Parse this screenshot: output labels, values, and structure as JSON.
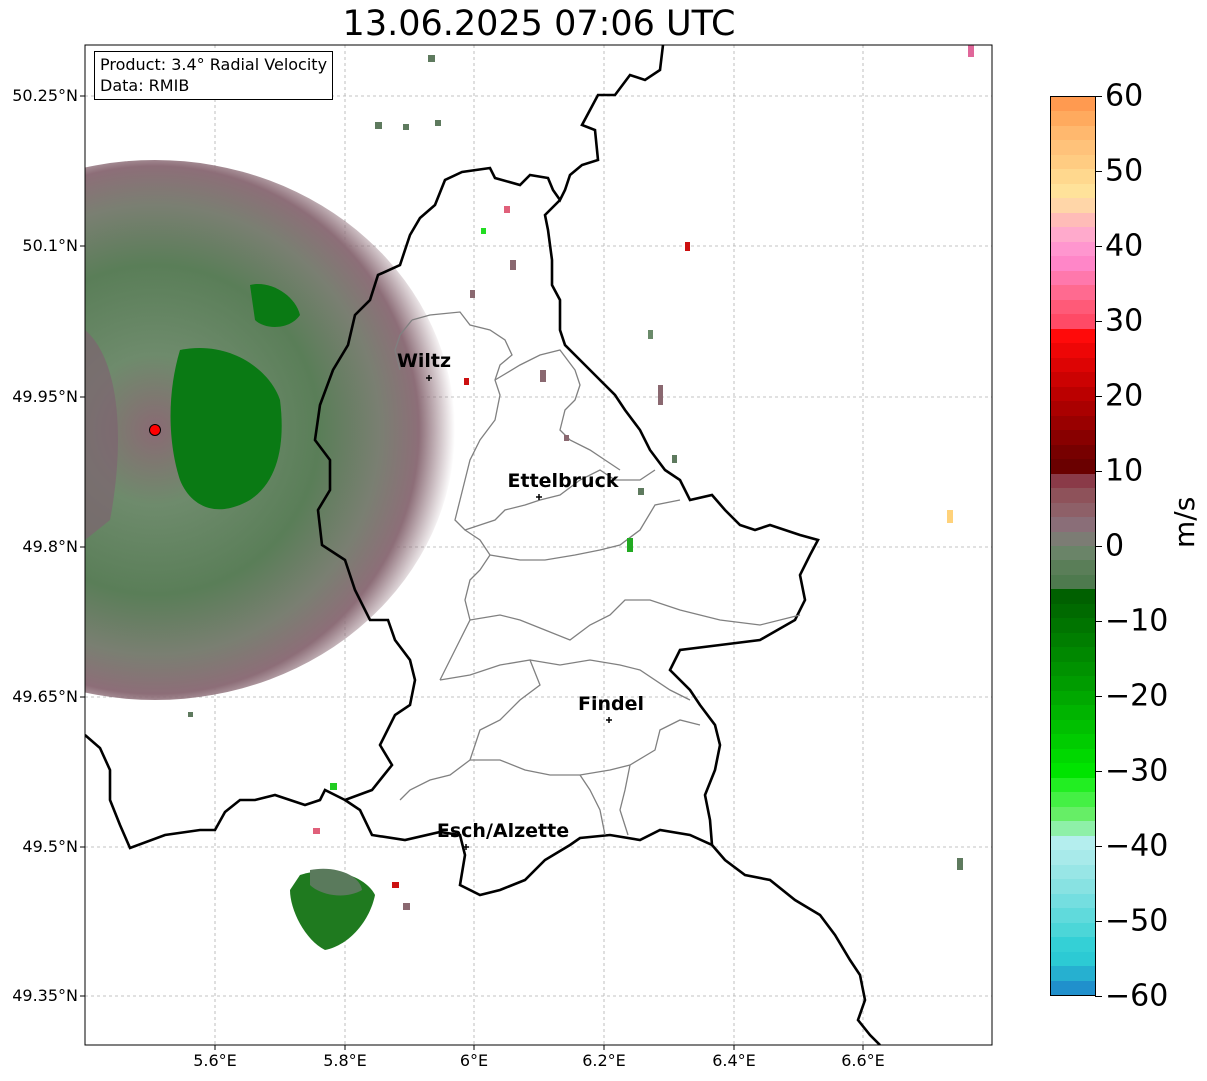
{
  "title": "13.06.2025 07:06 UTC",
  "info": {
    "product": "Product: 3.4° Radial Velocity",
    "data": "Data: RMIB"
  },
  "axes": {
    "x_ticks": [
      "5.6°E",
      "5.8°E",
      "6°E",
      "6.2°E",
      "6.4°E",
      "6.6°E"
    ],
    "y_ticks": [
      "50.25°N",
      "50.1°N",
      "49.95°N",
      "49.8°N",
      "49.65°N",
      "49.5°N",
      "49.35°N"
    ]
  },
  "cities": [
    {
      "name": "Wiltz"
    },
    {
      "name": "Ettelbruck"
    },
    {
      "name": "Findel"
    },
    {
      "name": "Esch/Alzette"
    }
  ],
  "colorbar": {
    "label": "m/s",
    "ticks": [
      "60",
      "50",
      "40",
      "30",
      "20",
      "10",
      "0",
      "−10",
      "−20",
      "−30",
      "−40",
      "−50",
      "−60"
    ],
    "range": [
      -60,
      60
    ]
  },
  "colors": {
    "border": "#000000",
    "canton": "#808080",
    "grid": "#b0b0b0",
    "radar_site": "#ff0000"
  }
}
